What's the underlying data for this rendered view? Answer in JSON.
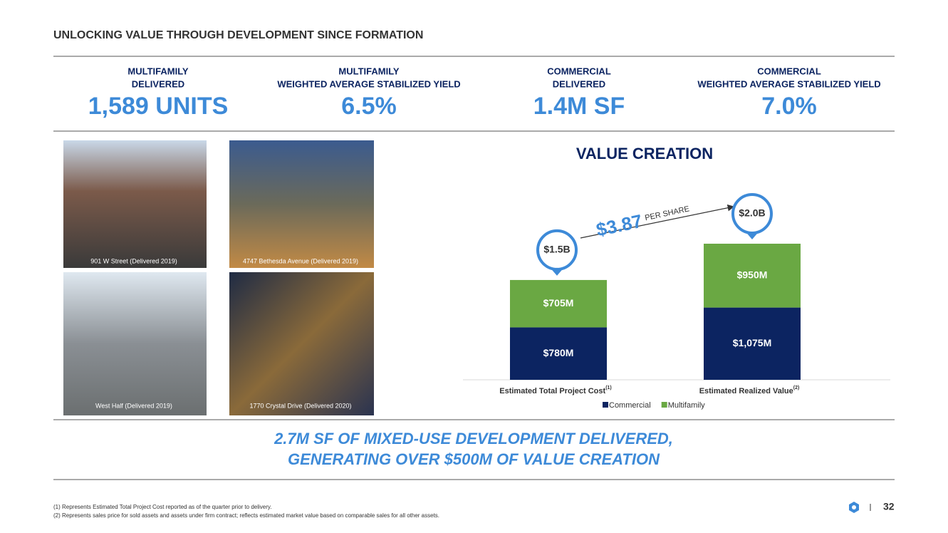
{
  "header": {
    "title": "UNLOCKING VALUE THROUGH DEVELOPMENT SINCE FORMATION"
  },
  "stats": [
    {
      "label": [
        "MULTIFAMILY",
        "DELIVERED"
      ],
      "value": "1,589 UNITS"
    },
    {
      "label": [
        "MULTIFAMILY",
        "WEIGHTED AVERAGE STABILIZED YIELD"
      ],
      "value": "6.5%"
    },
    {
      "label": [
        "COMMERCIAL",
        "DELIVERED"
      ],
      "value": "1.4M SF"
    },
    {
      "label": [
        "COMMERCIAL",
        "WEIGHTED AVERAGE STABILIZED YIELD"
      ],
      "value": "7.0%"
    }
  ],
  "photos": [
    {
      "caption": "901 W Street (Delivered 2019)"
    },
    {
      "caption": "4747 Bethesda Avenue (Delivered 2019)"
    },
    {
      "caption": "West Half (Delivered 2019)"
    },
    {
      "caption": "1770 Crystal Drive (Delivered 2020)"
    }
  ],
  "chart_data": {
    "type": "stacked_bar",
    "title": "VALUE CREATION",
    "categories": [
      "Estimated Total Project Cost",
      "Estimated Realized Value"
    ],
    "category_notes": [
      "(1)",
      "(2)"
    ],
    "series": [
      {
        "name": "Commercial",
        "color": "#0c2461",
        "values": [
          780,
          1075
        ],
        "value_labels": [
          "$780M",
          "$1,075M"
        ]
      },
      {
        "name": "Multifamily",
        "color": "#6aa843",
        "values": [
          705,
          950
        ],
        "value_labels": [
          "$705M",
          "$950M"
        ]
      }
    ],
    "callouts": [
      "$1.5B",
      "$2.0B"
    ],
    "annotation": {
      "value": "$3.87",
      "unit": "PER SHARE"
    },
    "legend": "bottom"
  },
  "tagline": [
    "2.7M SF OF MIXED-USE DEVELOPMENT DELIVERED,",
    "GENERATING OVER $500M OF VALUE CREATION"
  ],
  "footnotes": [
    "(1) Represents Estimated Total Project Cost reported as of the quarter prior to delivery.",
    "(2) Represents sales price for sold assets and assets under firm contract; reflects estimated market value based on comparable sales for all other assets."
  ],
  "page_number": "32"
}
